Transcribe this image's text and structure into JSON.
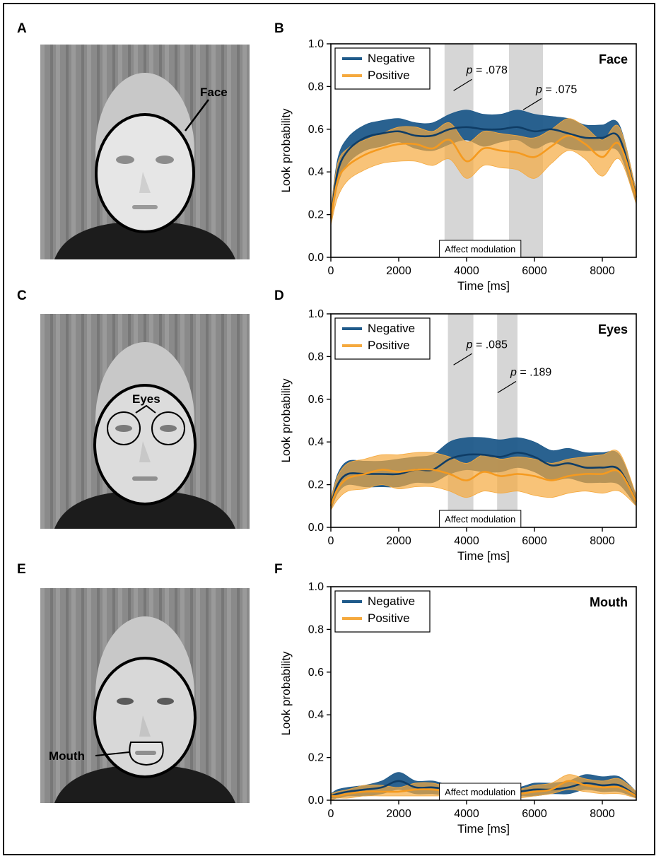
{
  "panels": {
    "A": "A",
    "B": "B",
    "C": "C",
    "D": "D",
    "E": "E",
    "F": "F"
  },
  "photo_labels": {
    "face": "Face",
    "eyes": "Eyes",
    "mouth": "Mouth"
  },
  "colors": {
    "negative": "#1f5a8a",
    "positive": "#f5a93e",
    "shade": "#d6d6d6"
  },
  "chart_data": [
    {
      "type": "area",
      "panel": "B",
      "region": "Face",
      "xlabel": "Time [ms]",
      "ylabel": "Look probability",
      "xlim": [
        0,
        9000
      ],
      "ylim": [
        0,
        1
      ],
      "xticks": [
        "0",
        "2000",
        "4000",
        "6000",
        "8000"
      ],
      "yticks": [
        "0.0",
        "0.2",
        "0.4",
        "0.6",
        "0.8",
        "1.0"
      ],
      "legend": [
        "Negative",
        "Positive"
      ],
      "shaded_windows": [
        [
          3350,
          4200
        ],
        [
          5250,
          6250
        ]
      ],
      "affect_label": "Affect modulation",
      "annotations": [
        {
          "p": "p",
          "text": " = .078",
          "x": 4200,
          "y": 0.88
        },
        {
          "p": "p",
          "text": " = .075",
          "x": 6250,
          "y": 0.79
        }
      ],
      "x": [
        0,
        200,
        500,
        1000,
        1500,
        2000,
        2500,
        3000,
        3500,
        4000,
        4500,
        5000,
        5500,
        6000,
        6500,
        7000,
        7500,
        8000,
        8500,
        9000
      ],
      "series": [
        {
          "name": "Negative",
          "mean": [
            0.18,
            0.4,
            0.5,
            0.56,
            0.58,
            0.59,
            0.57,
            0.57,
            0.6,
            0.61,
            0.6,
            0.6,
            0.61,
            0.59,
            0.6,
            0.58,
            0.56,
            0.56,
            0.56,
            0.28
          ],
          "lower": [
            0.15,
            0.34,
            0.44,
            0.5,
            0.52,
            0.54,
            0.51,
            0.5,
            0.53,
            0.55,
            0.52,
            0.54,
            0.55,
            0.51,
            0.54,
            0.51,
            0.5,
            0.5,
            0.49,
            0.25
          ],
          "upper": [
            0.22,
            0.46,
            0.56,
            0.62,
            0.64,
            0.65,
            0.63,
            0.63,
            0.67,
            0.69,
            0.67,
            0.67,
            0.69,
            0.67,
            0.66,
            0.65,
            0.62,
            0.62,
            0.62,
            0.31
          ]
        },
        {
          "name": "Positive",
          "mean": [
            0.18,
            0.36,
            0.43,
            0.48,
            0.51,
            0.53,
            0.53,
            0.51,
            0.55,
            0.45,
            0.51,
            0.5,
            0.49,
            0.47,
            0.52,
            0.57,
            0.53,
            0.47,
            0.53,
            0.28
          ],
          "lower": [
            0.15,
            0.28,
            0.36,
            0.41,
            0.44,
            0.45,
            0.45,
            0.43,
            0.46,
            0.37,
            0.43,
            0.42,
            0.41,
            0.37,
            0.44,
            0.5,
            0.46,
            0.38,
            0.46,
            0.25
          ],
          "upper": [
            0.22,
            0.44,
            0.51,
            0.55,
            0.58,
            0.61,
            0.61,
            0.59,
            0.63,
            0.54,
            0.59,
            0.58,
            0.57,
            0.56,
            0.6,
            0.65,
            0.61,
            0.55,
            0.61,
            0.31
          ]
        }
      ]
    },
    {
      "type": "area",
      "panel": "D",
      "region": "Eyes",
      "xlabel": "Time [ms]",
      "ylabel": "Look probability",
      "xlim": [
        0,
        9000
      ],
      "ylim": [
        0,
        1
      ],
      "xticks": [
        "0",
        "2000",
        "4000",
        "6000",
        "8000"
      ],
      "yticks": [
        "0.0",
        "0.2",
        "0.4",
        "0.6",
        "0.8",
        "1.0"
      ],
      "legend": [
        "Negative",
        "Positive"
      ],
      "shaded_windows": [
        [
          3450,
          4200
        ],
        [
          4900,
          5500
        ]
      ],
      "affect_label": "Affect modulation",
      "annotations": [
        {
          "p": "p",
          "text": " = .085",
          "x": 4200,
          "y": 0.86
        },
        {
          "p": "p",
          "text": " = .189",
          "x": 5500,
          "y": 0.73
        }
      ],
      "x": [
        0,
        200,
        500,
        1000,
        1500,
        2000,
        2500,
        3000,
        3500,
        4000,
        4500,
        5000,
        5500,
        6000,
        6500,
        7000,
        7500,
        8000,
        8500,
        9000
      ],
      "series": [
        {
          "name": "Negative",
          "mean": [
            0.1,
            0.2,
            0.25,
            0.25,
            0.25,
            0.25,
            0.27,
            0.27,
            0.32,
            0.34,
            0.34,
            0.33,
            0.35,
            0.33,
            0.29,
            0.3,
            0.28,
            0.28,
            0.27,
            0.12
          ],
          "lower": [
            0.08,
            0.16,
            0.2,
            0.19,
            0.19,
            0.19,
            0.21,
            0.21,
            0.25,
            0.27,
            0.26,
            0.26,
            0.28,
            0.26,
            0.22,
            0.23,
            0.21,
            0.21,
            0.2,
            0.1
          ],
          "upper": [
            0.13,
            0.25,
            0.31,
            0.31,
            0.31,
            0.32,
            0.33,
            0.34,
            0.4,
            0.42,
            0.42,
            0.41,
            0.42,
            0.4,
            0.36,
            0.37,
            0.35,
            0.35,
            0.34,
            0.15
          ]
        },
        {
          "name": "Positive",
          "mean": [
            0.1,
            0.18,
            0.23,
            0.25,
            0.27,
            0.26,
            0.27,
            0.27,
            0.25,
            0.22,
            0.26,
            0.24,
            0.25,
            0.24,
            0.22,
            0.24,
            0.25,
            0.25,
            0.26,
            0.12
          ],
          "lower": [
            0.08,
            0.13,
            0.17,
            0.18,
            0.2,
            0.18,
            0.19,
            0.19,
            0.17,
            0.14,
            0.17,
            0.16,
            0.17,
            0.15,
            0.14,
            0.16,
            0.17,
            0.16,
            0.17,
            0.1
          ],
          "upper": [
            0.13,
            0.24,
            0.3,
            0.32,
            0.34,
            0.34,
            0.35,
            0.35,
            0.33,
            0.3,
            0.34,
            0.32,
            0.33,
            0.32,
            0.3,
            0.32,
            0.33,
            0.34,
            0.35,
            0.15
          ]
        }
      ]
    },
    {
      "type": "area",
      "panel": "F",
      "region": "Mouth",
      "xlabel": "Time [ms]",
      "ylabel": "Look probability",
      "xlim": [
        0,
        9000
      ],
      "ylim": [
        0,
        1
      ],
      "xticks": [
        "0",
        "2000",
        "4000",
        "6000",
        "8000"
      ],
      "yticks": [
        "0.0",
        "0.2",
        "0.4",
        "0.6",
        "0.8",
        "1.0"
      ],
      "legend": [
        "Negative",
        "Positive"
      ],
      "shaded_windows": [],
      "affect_label": "Affect modulation",
      "annotations": [],
      "x": [
        0,
        200,
        500,
        1000,
        1500,
        2000,
        2500,
        3000,
        3500,
        4000,
        4500,
        5000,
        5500,
        6000,
        6500,
        7000,
        7500,
        8000,
        8500,
        9000
      ],
      "series": [
        {
          "name": "Negative",
          "mean": [
            0.02,
            0.03,
            0.04,
            0.05,
            0.06,
            0.09,
            0.06,
            0.06,
            0.05,
            0.04,
            0.04,
            0.05,
            0.04,
            0.05,
            0.05,
            0.06,
            0.08,
            0.07,
            0.07,
            0.02
          ],
          "lower": [
            0.01,
            0.01,
            0.02,
            0.02,
            0.03,
            0.05,
            0.03,
            0.03,
            0.02,
            0.02,
            0.02,
            0.02,
            0.02,
            0.02,
            0.03,
            0.03,
            0.05,
            0.04,
            0.04,
            0.01
          ],
          "upper": [
            0.03,
            0.05,
            0.06,
            0.07,
            0.09,
            0.13,
            0.09,
            0.09,
            0.07,
            0.06,
            0.06,
            0.08,
            0.06,
            0.08,
            0.08,
            0.09,
            0.12,
            0.11,
            0.11,
            0.04
          ]
        },
        {
          "name": "Positive",
          "mean": [
            0.02,
            0.02,
            0.03,
            0.04,
            0.04,
            0.04,
            0.05,
            0.05,
            0.04,
            0.04,
            0.04,
            0.04,
            0.03,
            0.04,
            0.05,
            0.09,
            0.07,
            0.06,
            0.06,
            0.02
          ],
          "lower": [
            0.0,
            0.01,
            0.01,
            0.02,
            0.02,
            0.02,
            0.02,
            0.02,
            0.02,
            0.02,
            0.02,
            0.02,
            0.01,
            0.02,
            0.03,
            0.05,
            0.04,
            0.03,
            0.03,
            0.01
          ],
          "upper": [
            0.03,
            0.04,
            0.05,
            0.07,
            0.07,
            0.06,
            0.08,
            0.08,
            0.06,
            0.06,
            0.06,
            0.06,
            0.05,
            0.07,
            0.08,
            0.12,
            0.1,
            0.09,
            0.1,
            0.04
          ]
        }
      ]
    }
  ]
}
